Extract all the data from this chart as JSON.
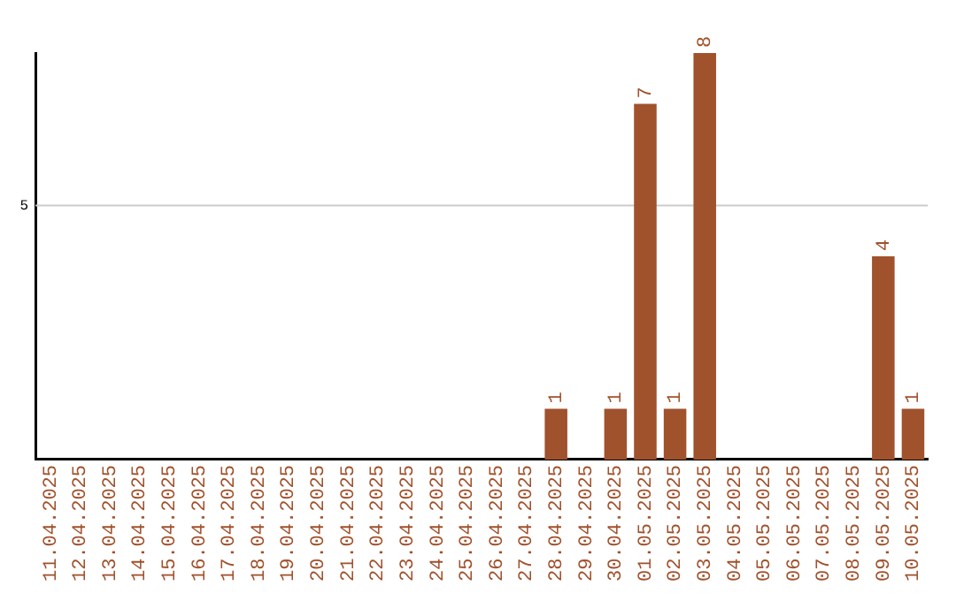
{
  "chart_data": {
    "type": "bar",
    "categories": [
      "11.04.2025",
      "12.04.2025",
      "13.04.2025",
      "14.04.2025",
      "15.04.2025",
      "16.04.2025",
      "17.04.2025",
      "18.04.2025",
      "19.04.2025",
      "20.04.2025",
      "21.04.2025",
      "22.04.2025",
      "23.04.2025",
      "24.04.2025",
      "25.04.2025",
      "26.04.2025",
      "27.04.2025",
      "28.04.2025",
      "29.04.2025",
      "30.04.2025",
      "01.05.2025",
      "02.05.2025",
      "03.05.2025",
      "04.05.2025",
      "05.05.2025",
      "06.05.2025",
      "07.05.2025",
      "08.05.2025",
      "09.05.2025",
      "10.05.2025"
    ],
    "values": [
      null,
      null,
      null,
      null,
      null,
      null,
      null,
      null,
      null,
      null,
      null,
      null,
      null,
      null,
      null,
      null,
      null,
      1,
      null,
      1,
      7,
      1,
      8,
      null,
      null,
      null,
      null,
      null,
      4,
      1
    ],
    "data_labels": true,
    "color": "#a0522d",
    "ref_lines": [
      {
        "axis": "y",
        "value": 5,
        "label": "5",
        "color": "#cccccc"
      }
    ],
    "legend": false
  }
}
